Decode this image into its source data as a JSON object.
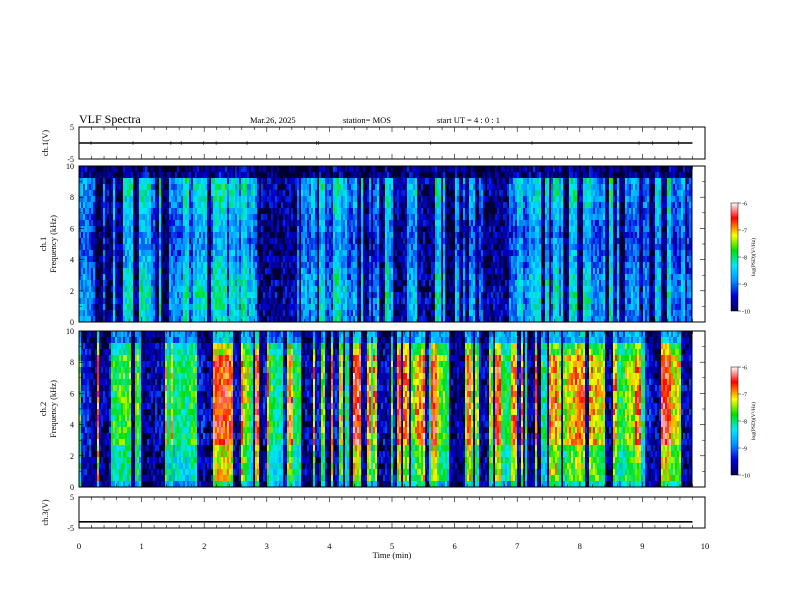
{
  "header": {
    "title": "VLF Spectra",
    "date": "Mar.26, 2025",
    "station": "station= MOS",
    "start_time": "start UT =  4 : 0  : 1"
  },
  "chart_data": [
    {
      "type": "line",
      "id": "ch1-waveform",
      "ylabel": "ch.1(V)",
      "ylim": [
        -5,
        5
      ],
      "yticks": [
        "5",
        "-5"
      ],
      "xlim": [
        0,
        10
      ],
      "series": [
        {
          "x": [
            0,
            9.8
          ],
          "values": [
            0,
            0
          ]
        }
      ]
    },
    {
      "type": "heatmap",
      "id": "ch1-spectrogram",
      "ylabel": "ch.1\nFrequency (kHz)",
      "ylim": [
        0,
        10
      ],
      "yticks": [
        "0",
        "2",
        "4",
        "6",
        "8",
        "10"
      ],
      "xlim": [
        0,
        10
      ],
      "data_xmax": 9.8,
      "colorbar": {
        "label": "log(PSD)(V²/Hz)",
        "range": [
          -10,
          -6
        ],
        "ticks": [
          "-6",
          "-7",
          "-8",
          "-9",
          "-10"
        ]
      }
    },
    {
      "type": "heatmap",
      "id": "ch2-spectrogram",
      "ylabel": "ch.2\nFrequency (kHz)",
      "ylim": [
        0,
        10
      ],
      "yticks": [
        "0",
        "2",
        "4",
        "6",
        "8",
        "10"
      ],
      "xlim": [
        0,
        10
      ],
      "data_xmax": 9.8,
      "colorbar": {
        "label": "log(PSD)(V²/Hz)",
        "range": [
          -10,
          -6
        ],
        "ticks": [
          "-6",
          "-7",
          "-8",
          "-9",
          "-10"
        ]
      }
    },
    {
      "type": "line",
      "id": "ch3-waveform",
      "ylabel": "ch.3(V)",
      "ylim": [
        -5,
        5
      ],
      "yticks": [
        "5",
        "-5"
      ],
      "xlim": [
        0,
        10
      ],
      "xlabel": "Time (min)",
      "xticks": [
        "0",
        "1",
        "2",
        "3",
        "4",
        "5",
        "6",
        "7",
        "8",
        "9",
        "10"
      ],
      "series": [
        {
          "x": [
            0,
            9.8
          ],
          "values": [
            -3,
            -3
          ]
        }
      ]
    }
  ],
  "colors": {
    "colormap": [
      "#000050",
      "#0000d8",
      "#0090ff",
      "#00e8ff",
      "#00e000",
      "#ffff00",
      "#ff0000",
      "#ffffff"
    ],
    "axis": "#000000"
  }
}
